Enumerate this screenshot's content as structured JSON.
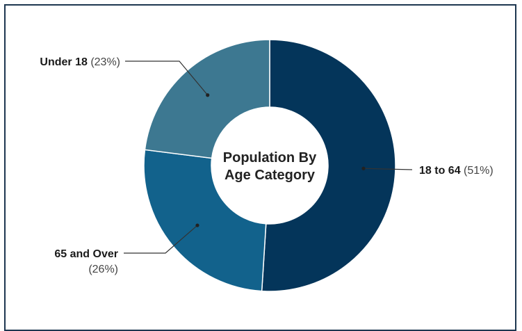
{
  "chart_data": {
    "type": "pie",
    "donut": true,
    "title": "Population By Age Category",
    "title_lines": [
      "Population By",
      "Age Category"
    ],
    "slices": [
      {
        "label": "18 to 64",
        "value": 51,
        "pct_text": "(51%)",
        "color": "#04355a"
      },
      {
        "label": "65 and Over",
        "value": 26,
        "pct_text": "(26%)",
        "color": "#12628c"
      },
      {
        "label": "Under 18",
        "value": 23,
        "pct_text": "(23%)",
        "color": "#3d7891"
      }
    ],
    "start_angle_deg": 0,
    "direction": "clockwise",
    "legend": "callout-labels"
  }
}
